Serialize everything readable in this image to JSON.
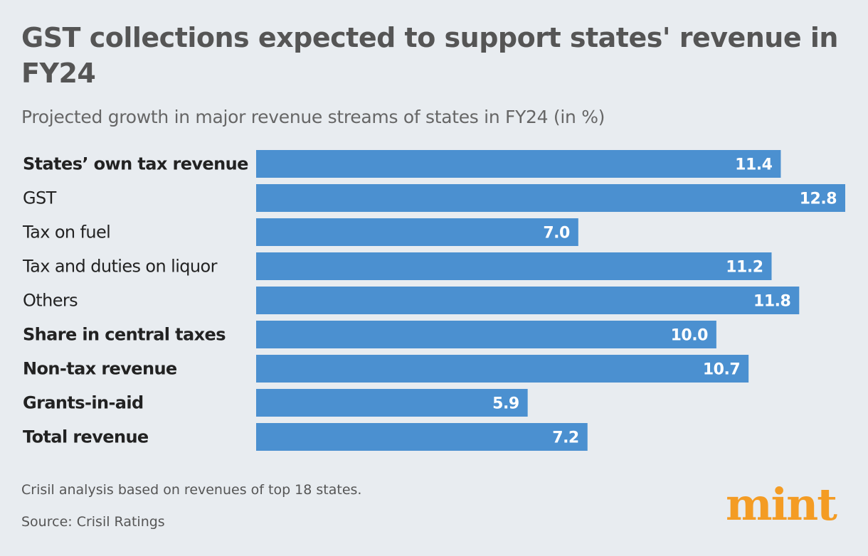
{
  "title": "GST collections expected to support states' revenue in FY24",
  "subtitle": "Projected growth in major revenue streams of states in FY24 (in %)",
  "note": "Crisil analysis based on revenues of top 18 states.",
  "source": "Source: Crisil Ratings",
  "logo": "mint",
  "colors": {
    "bar": "#4b90d0",
    "background": "#e8ecf0",
    "logo": "#f49c24"
  },
  "chart_data": {
    "type": "bar",
    "orientation": "horizontal",
    "categories": [
      "States’ own tax revenue",
      "GST",
      "Tax on fuel",
      "Tax and duties on liquor",
      "Others",
      "Share in central taxes",
      "Non-tax revenue",
      "Grants-in-aid",
      "Total revenue"
    ],
    "bold_categories": [
      true,
      false,
      false,
      false,
      false,
      true,
      true,
      true,
      true
    ],
    "values": [
      11.4,
      12.8,
      7.0,
      11.2,
      11.8,
      10.0,
      10.7,
      5.9,
      7.2
    ],
    "data_labels": [
      "11.4",
      "12.8",
      "7.0",
      "11.2",
      "11.8",
      "10.0",
      "10.7",
      "5.9",
      "7.2"
    ],
    "xlim": [
      0,
      12.8
    ],
    "grid": false,
    "legend": "none"
  }
}
